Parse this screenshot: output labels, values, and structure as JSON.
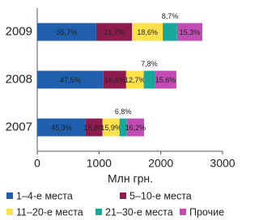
{
  "chart_data": {
    "type": "stacked-hbar",
    "x_label": "Млн грн.",
    "categories": [
      "2009",
      "2008",
      "2007"
    ],
    "xlim": [
      0,
      3000
    ],
    "xticks": [
      0,
      1000,
      2000,
      3000
    ],
    "series": [
      {
        "name": "1–4-е места",
        "color": "#1f5fae",
        "values": [
          955,
          1070,
          784
        ],
        "shares": [
          35.7,
          47.5,
          45.3
        ],
        "share_labels": [
          "35,7%",
          "47,5%",
          "45,3%"
        ]
      },
      {
        "name": "5–10-е места",
        "color": "#8e1b4e",
        "values": [
          580,
          369,
          273
        ],
        "shares": [
          21.7,
          16.4,
          15.8
        ],
        "share_labels": [
          "21,7%",
          "16,4%",
          "15,8%"
        ]
      },
      {
        "name": "11–20-е места",
        "color": "#ffe14a",
        "values": [
          497,
          286,
          275
        ],
        "shares": [
          18.6,
          12.7,
          15.9
        ],
        "share_labels": [
          "18,6%",
          "12,7%",
          "15,9%"
        ]
      },
      {
        "name": "21–30-е места",
        "color": "#17a89b",
        "values": [
          232,
          176,
          118
        ],
        "shares": [
          8.7,
          7.8,
          6.8
        ],
        "share_labels": [
          "8,7%",
          "7,8%",
          "6,8%"
        ]
      },
      {
        "name": "Прочие",
        "color": "#c24bb4",
        "values": [
          408,
          351,
          280
        ],
        "shares": [
          15.3,
          15.6,
          16.2
        ],
        "share_labels": [
          "15,3%",
          "15,6%",
          "16,2%"
        ]
      }
    ]
  }
}
